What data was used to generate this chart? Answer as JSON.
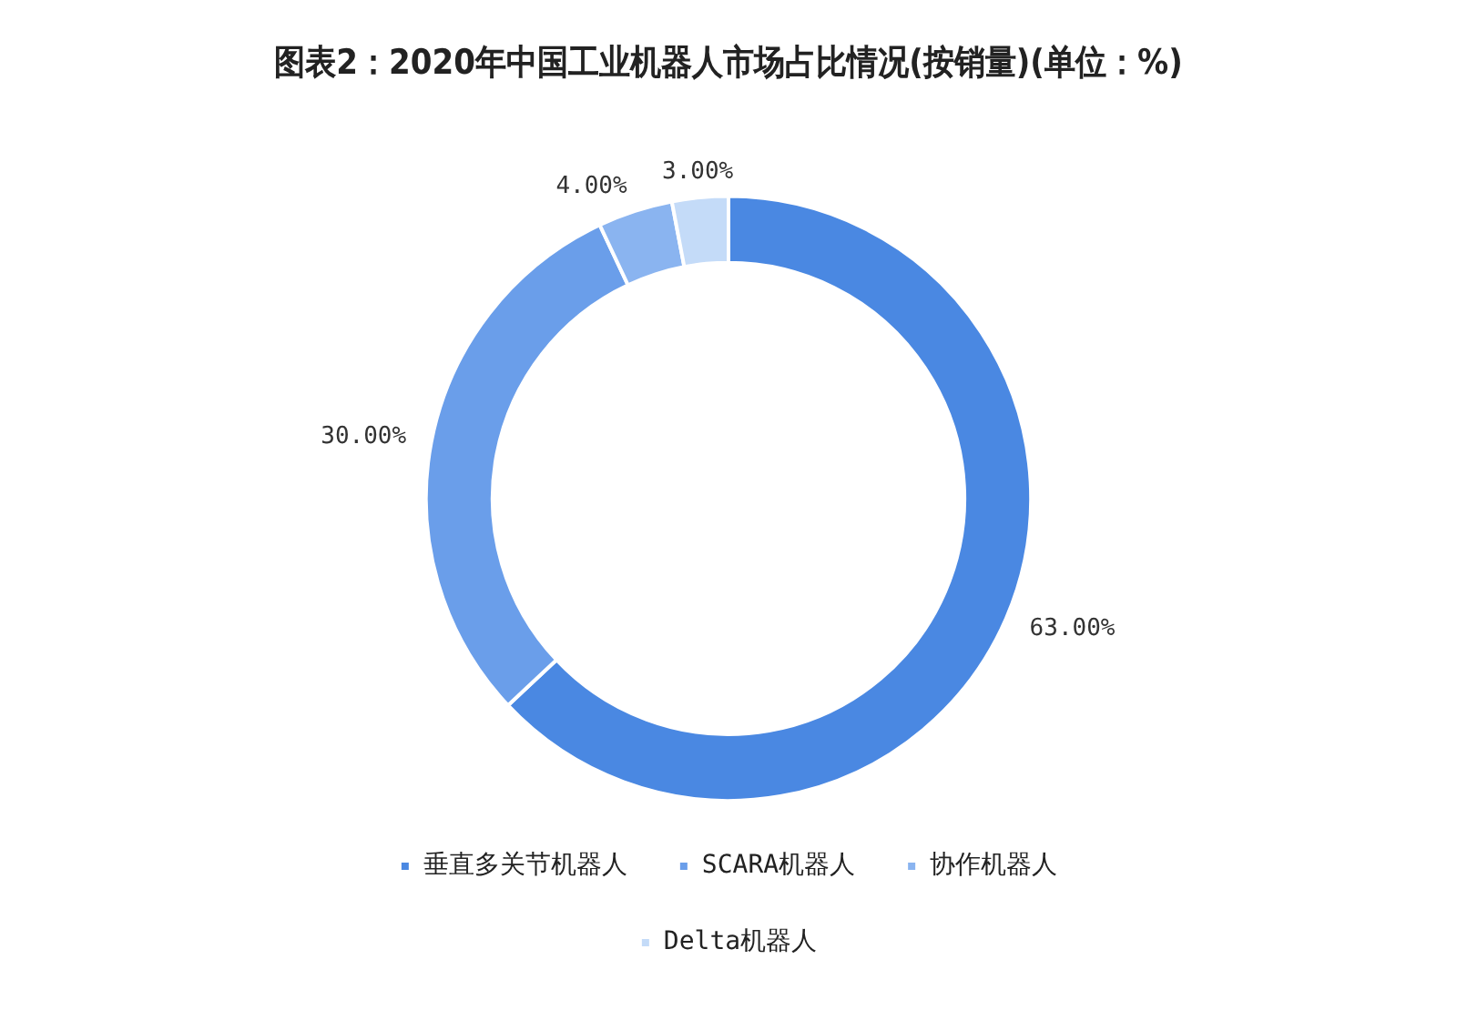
{
  "chart_data": {
    "type": "donut",
    "title": "图表2：2020年中国工业机器人市场占比情况(按销量)(单位：%)",
    "categories": [
      "垂直多关节机器人",
      "SCARA机器人",
      "协作机器人",
      "Delta机器人"
    ],
    "values": [
      63,
      30,
      4,
      3
    ],
    "value_labels": [
      "63.00%",
      "30.00%",
      "4.00%",
      "3.00%"
    ],
    "colors": [
      "#4a88e2",
      "#6a9eea",
      "#8ab4f0",
      "#c4dbf8"
    ],
    "legend": "bottom"
  }
}
